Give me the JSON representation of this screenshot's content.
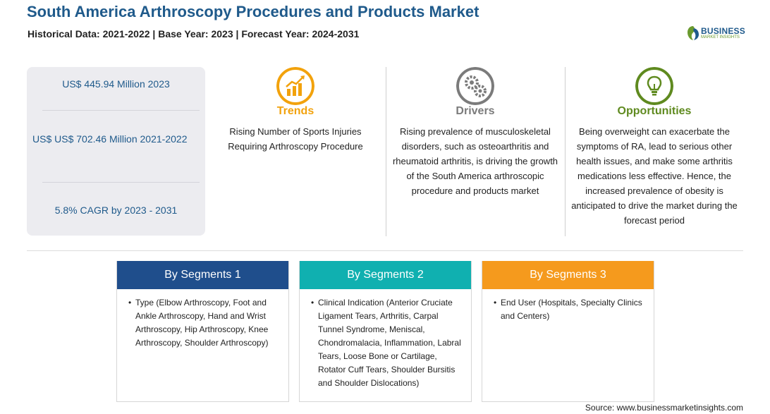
{
  "header": {
    "title": "South America Arthroscopy Procedures and Products Market",
    "subtitle": "Historical Data: 2021-2022 | Base Year: 2023 | Forecast Year: 2024-2031"
  },
  "logo": {
    "main": "BUSINESS",
    "sub": "MARKET INSIGHTS"
  },
  "stats": [
    {
      "text": "US$ 445.94 Million 2023"
    },
    {
      "text": "US$ US$ 702.46 Million 2021-2022"
    },
    {
      "text": "5.8% CAGR by 2023 - 2031"
    }
  ],
  "columns": [
    {
      "heading": "Trends",
      "text": "Rising Number of Sports Injuries Requiring Arthroscopy Procedure",
      "color": "#f2a20c",
      "icon": "chart-growth-icon"
    },
    {
      "heading": "Drivers",
      "text": "Rising prevalence of musculoskeletal disorders, such as osteoarthritis and rheumatoid arthritis, is driving the growth of the South America arthroscopic procedure and products market",
      "color": "#7b7b7b",
      "icon": "gears-icon"
    },
    {
      "heading": "Opportunities",
      "text": "Being overweight can exacerbate the symptoms of RA, lead to serious other health issues, and make some arthritis medications less effective. Hence, the increased prevalence of obesity is anticipated to drive the market during the forecast period",
      "color": "#5f8a1f",
      "icon": "lightbulb-icon"
    }
  ],
  "segments": [
    {
      "title": "By Segments 1",
      "color": "#1f4e8c",
      "item": "Type (Elbow Arthroscopy, Foot and Ankle Arthroscopy, Hand and Wrist Arthroscopy, Hip Arthroscopy, Knee Arthroscopy, Shoulder Arthroscopy)"
    },
    {
      "title": "By Segments 2",
      "color": "#10b0b0",
      "item": "Clinical Indication (Anterior Cruciate Ligament Tears, Arthritis, Carpal Tunnel Syndrome, Meniscal, Chondromalacia, Inflammation, Labral Tears, Loose Bone or Cartilage, Rotator Cuff Tears, Shoulder Bursitis and Shoulder Dislocations)"
    },
    {
      "title": "By Segments 3",
      "color": "#f59a1d",
      "item": "End User (Hospitals, Specialty Clinics and Centers)"
    }
  ],
  "source": "Source: www.businessmarketinsights.com"
}
